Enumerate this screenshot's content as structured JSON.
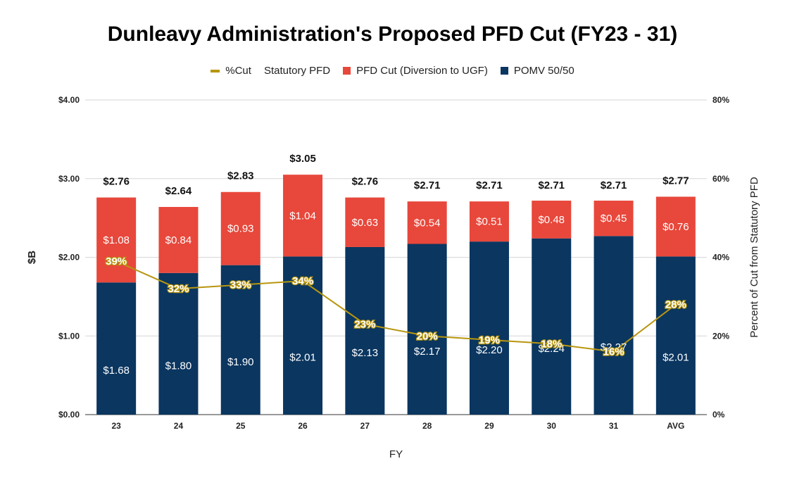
{
  "chart_data": {
    "type": "bar",
    "title": "Dunleavy Administration's Proposed PFD Cut (FY23 - 31)",
    "xlabel": "FY",
    "ylabel": "$B",
    "y2label": "Percent of Cut from Statutory PFD",
    "categories": [
      "23",
      "24",
      "25",
      "26",
      "27",
      "28",
      "29",
      "30",
      "31",
      "AVG"
    ],
    "yticks": [
      "$0.00",
      "$1.00",
      "$2.00",
      "$3.00",
      "$4.00"
    ],
    "y2ticks": [
      "0%",
      "20%",
      "40%",
      "60%",
      "80%"
    ],
    "ylim": [
      0,
      4
    ],
    "y2lim": [
      0,
      80
    ],
    "legend_position": "top",
    "grid": true,
    "series": [
      {
        "name": "%Cut",
        "kind": "line",
        "axis": "right",
        "color": "#b8960f",
        "values": [
          39,
          32,
          33,
          34,
          23,
          20,
          19,
          18,
          16,
          28
        ],
        "labels": [
          "39%",
          "32%",
          "33%",
          "34%",
          "23%",
          "20%",
          "19%",
          "18%",
          "16%",
          "28%"
        ]
      },
      {
        "name": "Statutory PFD",
        "kind": "total",
        "color": "",
        "values": [
          2.76,
          2.64,
          2.83,
          3.05,
          2.76,
          2.71,
          2.71,
          2.71,
          2.71,
          2.77
        ],
        "labels": [
          "$2.76",
          "$2.64",
          "$2.83",
          "$3.05",
          "$2.76",
          "$2.71",
          "$2.71",
          "$2.71",
          "$2.71",
          "$2.77"
        ]
      },
      {
        "name": "PFD Cut (Diversion to UGF)",
        "kind": "bar",
        "color": "#e8473b",
        "values": [
          1.08,
          0.84,
          0.93,
          1.04,
          0.63,
          0.54,
          0.51,
          0.48,
          0.45,
          0.76
        ],
        "labels": [
          "$1.08",
          "$0.84",
          "$0.93",
          "$1.04",
          "$0.63",
          "$0.54",
          "$0.51",
          "$0.48",
          "$0.45",
          "$0.76"
        ]
      },
      {
        "name": "POMV 50/50",
        "kind": "bar",
        "color": "#0a3660",
        "values": [
          1.68,
          1.8,
          1.9,
          2.01,
          2.13,
          2.17,
          2.2,
          2.24,
          2.27,
          2.01
        ],
        "labels": [
          "$1.68",
          "$1.80",
          "$1.90",
          "$2.01",
          "$2.13",
          "$2.17",
          "$2.20",
          "$2.24",
          "$2.27",
          "$2.01"
        ]
      }
    ]
  }
}
